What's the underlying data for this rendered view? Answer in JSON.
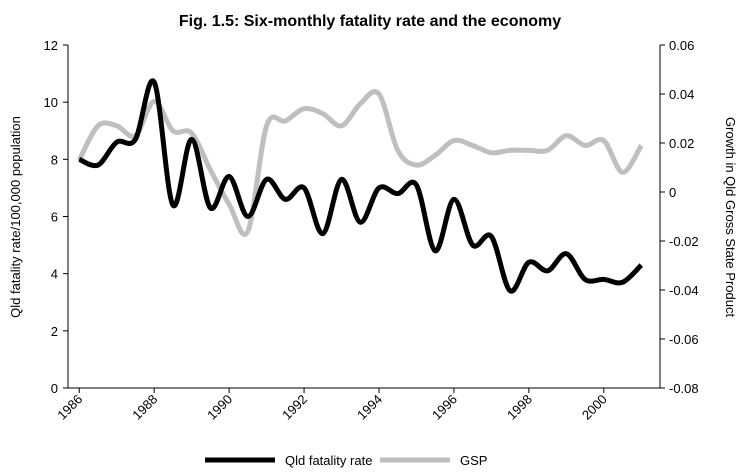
{
  "chart_data": {
    "type": "line",
    "title": "Fig. 1.5: Six-monthly fatality rate and the economy",
    "y_label": "Qld fatality rate/100,000 population",
    "y2_label": "Growth in Qld Gross State Product",
    "x": [
      1986,
      1986.5,
      1987,
      1987.5,
      1988,
      1988.5,
      1989,
      1989.5,
      1990,
      1990.5,
      1991,
      1991.5,
      1992,
      1992.5,
      1993,
      1993.5,
      1994,
      1994.5,
      1995,
      1995.5,
      1996,
      1996.5,
      1997,
      1997.5,
      1998,
      1998.5,
      1999,
      1999.5,
      2000,
      2000.5,
      2001
    ],
    "series": [
      {
        "name": "Qld fatality rate",
        "color": "#000000",
        "axis": "y",
        "values": [
          8.0,
          7.8,
          8.6,
          8.7,
          10.7,
          6.4,
          8.7,
          6.3,
          7.4,
          6.0,
          7.3,
          6.6,
          7.0,
          5.4,
          7.3,
          5.8,
          7.0,
          6.8,
          7.1,
          4.8,
          6.6,
          5.0,
          5.3,
          3.4,
          4.4,
          4.1,
          4.7,
          3.8,
          3.8,
          3.7,
          4.3
        ]
      },
      {
        "name": "GSP",
        "color": "#bfbfbf",
        "axis": "y2",
        "values": [
          0.013,
          0.027,
          0.027,
          0.023,
          0.037,
          0.025,
          0.024,
          0.009,
          -0.005,
          -0.016,
          0.027,
          0.029,
          0.034,
          0.032,
          0.027,
          0.036,
          0.04,
          0.017,
          0.011,
          0.015,
          0.021,
          0.019,
          0.016,
          0.017,
          0.017,
          0.017,
          0.023,
          0.019,
          0.021,
          0.008,
          0.019
        ]
      }
    ],
    "xlim": [
      1985.7,
      2001.5
    ],
    "xticks": [
      1986,
      1988,
      1990,
      1992,
      1994,
      1996,
      1998,
      2000
    ],
    "ylim": [
      0,
      12
    ],
    "yticks": [
      0,
      2,
      4,
      6,
      8,
      10,
      12
    ],
    "y2lim": [
      -0.08,
      0.06
    ],
    "y2ticks": [
      -0.08,
      -0.06,
      -0.04,
      -0.02,
      0,
      0.02,
      0.04,
      0.06
    ],
    "grid": false,
    "legend": "bottom"
  }
}
